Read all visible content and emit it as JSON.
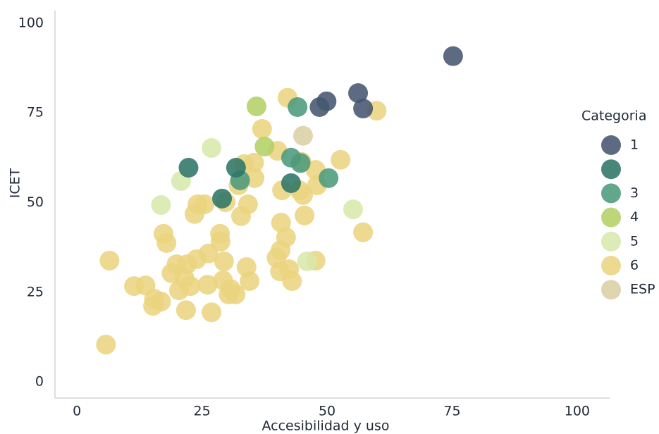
{
  "chart_data": {
    "type": "scatter",
    "x_label": "Accesibilidad y uso",
    "y_label": "ICET",
    "legend_title": "Categoria",
    "legend": "right",
    "xlim": [
      -4.4,
      106.5
    ],
    "ylim": [
      -4.5,
      103.5
    ],
    "xticks": [
      0,
      25,
      50,
      75,
      100
    ],
    "yticks": [
      0,
      25,
      50,
      75,
      100
    ],
    "grid": false,
    "series": [
      {
        "name": "1",
        "color": "#46566f",
        "x": [
          75.2,
          56.2,
          49.9,
          48.5,
          57.2
        ],
        "y": [
          90.8,
          80.5,
          78.2,
          76.6,
          76.2
        ]
      },
      {
        "name": null,
        "color": "#2f7566",
        "x": [
          22.3,
          29.0,
          31.8,
          42.8
        ],
        "y": [
          59.7,
          51.1,
          59.7,
          55.4
        ]
      },
      {
        "name": "3",
        "color": "#4c9a7c",
        "x": [
          44.1,
          42.8,
          44.7,
          50.3,
          32.6
        ],
        "y": [
          76.6,
          62.5,
          61.0,
          56.8,
          56.2
        ]
      },
      {
        "name": "4",
        "color": "#b4d066",
        "x": [
          35.9,
          37.5
        ],
        "y": [
          76.8,
          65.6
        ]
      },
      {
        "name": "5",
        "color": "#d8e8ad",
        "x": [
          26.9,
          20.8,
          16.8,
          55.2,
          46.0
        ],
        "y": [
          65.2,
          56.0,
          49.3,
          48.1,
          33.6
        ]
      },
      {
        "name": "6",
        "color": "#ebd47f",
        "x": [
          42.1,
          59.9,
          37.0,
          40.1,
          52.7,
          35.4,
          33.4,
          44.9,
          47.7,
          32.3,
          35.5,
          41.0,
          44.5,
          45.2,
          48.0,
          24.1,
          25.5,
          23.5,
          29.7,
          34.2,
          32.8,
          45.5,
          40.8,
          41.8,
          57.2,
          17.3,
          28.6,
          28.7,
          17.9,
          40.7,
          26.3,
          23.9,
          6.5,
          19.9,
          22.0,
          29.4,
          39.9,
          47.7,
          33.9,
          42.4,
          18.9,
          21.5,
          40.6,
          11.4,
          13.7,
          15.4,
          16.8,
          15.2,
          20.4,
          22.7,
          26.1,
          29.2,
          34.5,
          30.7,
          30.3,
          31.7,
          43.0,
          21.8,
          26.9,
          5.8
        ],
        "y": [
          79.2,
          75.6,
          70.5,
          64.4,
          61.9,
          61.1,
          60.7,
          61.3,
          59.1,
          54.8,
          56.8,
          53.4,
          53.4,
          52.1,
          54.8,
          49.5,
          49.5,
          46.8,
          50.1,
          49.5,
          46.2,
          46.4,
          44.4,
          40.3,
          41.7,
          41.3,
          41.3,
          39.1,
          38.7,
          36.7,
          35.8,
          34.2,
          33.8,
          32.8,
          32.8,
          33.6,
          34.6,
          33.8,
          32.0,
          31.4,
          30.3,
          28.9,
          30.8,
          26.7,
          26.9,
          23.2,
          22.4,
          21.2,
          25.5,
          26.7,
          27.1,
          28.3,
          28.1,
          25.9,
          24.4,
          24.4,
          28.1,
          20.0,
          19.4,
          10.4
        ]
      },
      {
        "name": "ESP",
        "color": "#dbcfa6",
        "x": [
          45.2
        ],
        "y": [
          68.6
        ]
      }
    ]
  }
}
